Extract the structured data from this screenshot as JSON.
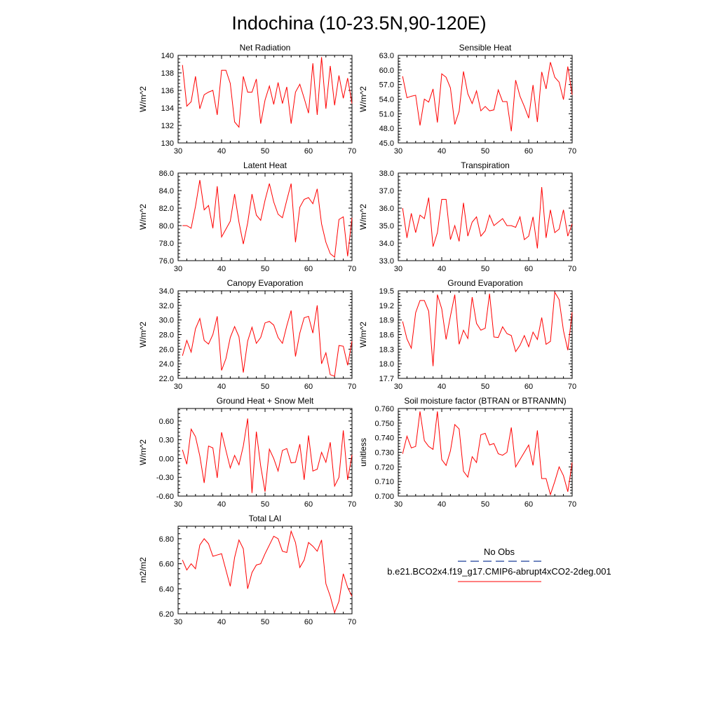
{
  "title": "Indochina (10-23.5N,90-120E)",
  "colors": {
    "series": "#ff0000",
    "obs": "#1a3f99",
    "axis": "#000000"
  },
  "legend": {
    "obs_label": "No Obs",
    "model_label": "b.e21.BCO2x4.f19_g17.CMIP6-abrupt4xCO2-2deg.001"
  },
  "chart_data": [
    {
      "type": "line",
      "title": "Net Radiation",
      "ylabel": "W/m^2",
      "xlim": [
        30,
        70
      ],
      "ylim": [
        130,
        140
      ],
      "xticks": [
        30,
        40,
        50,
        60,
        70
      ],
      "yticks": [
        130,
        132,
        134,
        136,
        138,
        140
      ],
      "ytick_labels": [
        "130",
        "132",
        "134",
        "136",
        "138",
        "140"
      ],
      "x": [
        31,
        32,
        33,
        34,
        35,
        36,
        37,
        38,
        39,
        40,
        41,
        42,
        43,
        44,
        45,
        46,
        47,
        48,
        49,
        50,
        51,
        52,
        53,
        54,
        55,
        56,
        57,
        58,
        59,
        60,
        61,
        62,
        63,
        64,
        65,
        66,
        67,
        68,
        69,
        70
      ],
      "series": [
        {
          "name": "b.e21.BCO2x4.f19_g17.CMIP6-abrupt4xCO2-2deg.001",
          "values": [
            138.9,
            134.2,
            134.7,
            137.6,
            133.9,
            135.5,
            135.8,
            136.0,
            133.2,
            138.3,
            138.3,
            136.8,
            132.4,
            131.8,
            137.6,
            135.8,
            135.8,
            137.3,
            132.2,
            134.9,
            136.5,
            134.4,
            136.9,
            134.5,
            136.4,
            132.2,
            135.8,
            136.7,
            135.1,
            133.4,
            139.1,
            133.2,
            139.8,
            133.9,
            138.8,
            134.3,
            137.7,
            135.1,
            137.4,
            134.5
          ]
        }
      ]
    },
    {
      "type": "line",
      "title": "Sensible Heat",
      "ylabel": "W/m^2",
      "xlim": [
        30,
        70
      ],
      "ylim": [
        45,
        63
      ],
      "xticks": [
        30,
        40,
        50,
        60,
        70
      ],
      "yticks": [
        45,
        48,
        51,
        54,
        57,
        60,
        63
      ],
      "ytick_labels": [
        "45.0",
        "48.0",
        "51.0",
        "54.0",
        "57.0",
        "60.0",
        "63.0"
      ],
      "x": [
        31,
        32,
        33,
        34,
        35,
        36,
        37,
        38,
        39,
        40,
        41,
        42,
        43,
        44,
        45,
        46,
        47,
        48,
        49,
        50,
        51,
        52,
        53,
        54,
        55,
        56,
        57,
        58,
        59,
        60,
        61,
        62,
        63,
        64,
        65,
        66,
        67,
        68,
        69,
        70
      ],
      "series": [
        {
          "name": "b.e21.BCO2x4.f19_g17.CMIP6-abrupt4xCO2-2deg.001",
          "values": [
            58.7,
            54.3,
            54.6,
            54.8,
            48.6,
            54.0,
            53.4,
            56.1,
            49.2,
            59.2,
            58.5,
            56.3,
            48.8,
            51.5,
            59.7,
            55.1,
            53.1,
            55.7,
            51.6,
            52.5,
            51.6,
            51.8,
            55.9,
            53.5,
            53.5,
            47.4,
            57.9,
            54.6,
            52.5,
            50.1,
            56.9,
            49.3,
            59.6,
            56.1,
            61.6,
            58.5,
            57.5,
            53.9,
            60.7,
            54.9
          ]
        }
      ]
    },
    {
      "type": "line",
      "title": "Latent Heat",
      "ylabel": "W/m^2",
      "xlim": [
        30,
        70
      ],
      "ylim": [
        76,
        86
      ],
      "xticks": [
        30,
        40,
        50,
        60,
        70
      ],
      "yticks": [
        76,
        78,
        80,
        82,
        84,
        86
      ],
      "ytick_labels": [
        "76.0",
        "78.0",
        "80.0",
        "82.0",
        "84.0",
        "86.0"
      ],
      "x": [
        31,
        32,
        33,
        34,
        35,
        36,
        37,
        38,
        39,
        40,
        41,
        42,
        43,
        44,
        45,
        46,
        47,
        48,
        49,
        50,
        51,
        52,
        53,
        54,
        55,
        56,
        57,
        58,
        59,
        60,
        61,
        62,
        63,
        64,
        65,
        66,
        67,
        68,
        69,
        70
      ],
      "series": [
        {
          "name": "b.e21.BCO2x4.f19_g17.CMIP6-abrupt4xCO2-2deg.001",
          "values": [
            80.0,
            80.0,
            79.7,
            82.2,
            85.2,
            81.8,
            82.3,
            79.7,
            84.5,
            78.7,
            79.6,
            80.5,
            83.6,
            80.4,
            77.9,
            80.3,
            83.6,
            81.2,
            80.6,
            82.9,
            84.8,
            82.7,
            81.3,
            80.9,
            82.9,
            84.8,
            78.1,
            82.1,
            83.0,
            83.2,
            82.5,
            84.2,
            80.2,
            78.1,
            76.8,
            76.4,
            80.7,
            81.0,
            76.5,
            80.9
          ]
        }
      ]
    },
    {
      "type": "line",
      "title": "Transpiration",
      "ylabel": "W/m^2",
      "xlim": [
        30,
        70
      ],
      "ylim": [
        33,
        38
      ],
      "xticks": [
        30,
        40,
        50,
        60,
        70
      ],
      "yticks": [
        33,
        34,
        35,
        36,
        37,
        38
      ],
      "ytick_labels": [
        "33.0",
        "34.0",
        "35.0",
        "36.0",
        "37.0",
        "38.0"
      ],
      "x": [
        31,
        32,
        33,
        34,
        35,
        36,
        37,
        38,
        39,
        40,
        41,
        42,
        43,
        44,
        45,
        46,
        47,
        48,
        49,
        50,
        51,
        52,
        53,
        54,
        55,
        56,
        57,
        58,
        59,
        60,
        61,
        62,
        63,
        64,
        65,
        66,
        67,
        68,
        69,
        70
      ],
      "series": [
        {
          "name": "b.e21.BCO2x4.f19_g17.CMIP6-abrupt4xCO2-2deg.001",
          "values": [
            36.0,
            34.3,
            35.7,
            34.6,
            35.6,
            35.4,
            36.6,
            33.8,
            34.6,
            36.5,
            36.5,
            34.2,
            35.0,
            34.1,
            36.3,
            34.4,
            35.2,
            35.5,
            34.4,
            34.7,
            35.6,
            35.0,
            35.2,
            35.4,
            35.0,
            35.0,
            34.9,
            35.5,
            34.2,
            34.4,
            35.5,
            33.7,
            37.2,
            34.3,
            35.9,
            34.6,
            34.8,
            35.9,
            34.4,
            35.1
          ]
        }
      ]
    },
    {
      "type": "line",
      "title": "Canopy Evaporation",
      "ylabel": "W/m^2",
      "xlim": [
        30,
        70
      ],
      "ylim": [
        22,
        34
      ],
      "xticks": [
        30,
        40,
        50,
        60,
        70
      ],
      "yticks": [
        22,
        24,
        26,
        28,
        30,
        32,
        34
      ],
      "ytick_labels": [
        "22.0",
        "24.0",
        "26.0",
        "28.0",
        "30.0",
        "32.0",
        "34.0"
      ],
      "x": [
        31,
        32,
        33,
        34,
        35,
        36,
        37,
        38,
        39,
        40,
        41,
        42,
        43,
        44,
        45,
        46,
        47,
        48,
        49,
        50,
        51,
        52,
        53,
        54,
        55,
        56,
        57,
        58,
        59,
        60,
        61,
        62,
        63,
        64,
        65,
        66,
        67,
        68,
        69,
        70
      ],
      "series": [
        {
          "name": "b.e21.BCO2x4.f19_g17.CMIP6-abrupt4xCO2-2deg.001",
          "values": [
            25.1,
            27.2,
            25.6,
            28.8,
            30.2,
            27.2,
            26.7,
            28.0,
            30.5,
            23.1,
            24.7,
            27.6,
            29.1,
            27.7,
            22.8,
            27.1,
            29.0,
            26.8,
            27.6,
            29.6,
            29.8,
            29.3,
            27.6,
            26.8,
            29.2,
            31.3,
            25.0,
            28.2,
            30.3,
            30.5,
            28.2,
            32.0,
            24.0,
            25.5,
            22.5,
            22.3,
            26.5,
            26.4,
            23.8,
            27.1
          ]
        }
      ]
    },
    {
      "type": "line",
      "title": "Ground Evaporation",
      "ylabel": "W/m^2",
      "xlim": [
        30,
        70
      ],
      "ylim": [
        17.7,
        19.5
      ],
      "xticks": [
        30,
        40,
        50,
        60,
        70
      ],
      "yticks": [
        17.7,
        18.0,
        18.3,
        18.6,
        18.9,
        19.2,
        19.5
      ],
      "ytick_labels": [
        "17.7",
        "18.0",
        "18.3",
        "18.6",
        "18.9",
        "19.2",
        "19.5"
      ],
      "x": [
        31,
        32,
        33,
        34,
        35,
        36,
        37,
        38,
        39,
        40,
        41,
        42,
        43,
        44,
        45,
        46,
        47,
        48,
        49,
        50,
        51,
        52,
        53,
        54,
        55,
        56,
        57,
        58,
        59,
        60,
        61,
        62,
        63,
        64,
        65,
        66,
        67,
        68,
        69,
        70
      ],
      "series": [
        {
          "name": "b.e21.BCO2x4.f19_g17.CMIP6-abrupt4xCO2-2deg.001",
          "values": [
            18.87,
            18.51,
            18.32,
            19.05,
            19.3,
            19.3,
            19.08,
            17.95,
            19.42,
            19.13,
            18.5,
            18.98,
            19.42,
            18.4,
            18.69,
            18.52,
            19.37,
            18.83,
            18.69,
            18.73,
            19.44,
            18.55,
            18.54,
            18.76,
            18.62,
            18.58,
            18.25,
            18.38,
            18.58,
            18.35,
            18.65,
            18.5,
            18.95,
            18.4,
            18.46,
            19.47,
            19.32,
            18.68,
            18.28,
            19.06
          ]
        }
      ]
    },
    {
      "type": "line",
      "title": "Ground Heat + Snow Melt",
      "ylabel": "W/m^2",
      "xlim": [
        30,
        70
      ],
      "ylim": [
        -0.6,
        0.8
      ],
      "xticks": [
        30,
        40,
        50,
        60,
        70
      ],
      "yticks": [
        -0.6,
        -0.3,
        0.0,
        0.3,
        0.6
      ],
      "ytick_labels": [
        "-0.60",
        "-0.30",
        "0.00",
        "0.30",
        "0.60"
      ],
      "x": [
        31,
        32,
        33,
        34,
        35,
        36,
        37,
        38,
        39,
        40,
        41,
        42,
        43,
        44,
        45,
        46,
        47,
        48,
        49,
        50,
        51,
        52,
        53,
        54,
        55,
        56,
        57,
        58,
        59,
        60,
        61,
        62,
        63,
        64,
        65,
        66,
        67,
        68,
        69,
        70
      ],
      "series": [
        {
          "name": "b.e21.BCO2x4.f19_g17.CMIP6-abrupt4xCO2-2deg.001",
          "values": [
            0.14,
            -0.09,
            0.47,
            0.35,
            0.04,
            -0.39,
            0.2,
            0.17,
            -0.31,
            0.42,
            0.13,
            -0.15,
            0.05,
            -0.1,
            0.2,
            0.64,
            -0.55,
            0.43,
            -0.12,
            -0.53,
            0.15,
            0.0,
            -0.2,
            0.13,
            0.16,
            -0.07,
            -0.06,
            0.23,
            -0.34,
            0.37,
            -0.2,
            -0.17,
            0.1,
            -0.06,
            0.26,
            -0.44,
            -0.3,
            0.45,
            -0.34,
            0.06
          ]
        }
      ]
    },
    {
      "type": "line",
      "title": "Soil moisture factor (BTRAN or BTRANMN)",
      "ylabel": "unitless",
      "xlim": [
        30,
        70
      ],
      "ylim": [
        0.7,
        0.76
      ],
      "xticks": [
        30,
        40,
        50,
        60,
        70
      ],
      "yticks": [
        0.7,
        0.71,
        0.72,
        0.73,
        0.74,
        0.75,
        0.76
      ],
      "ytick_labels": [
        "0.700",
        "0.710",
        "0.720",
        "0.730",
        "0.740",
        "0.750",
        "0.760"
      ],
      "x": [
        31,
        32,
        33,
        34,
        35,
        36,
        37,
        38,
        39,
        40,
        41,
        42,
        43,
        44,
        45,
        46,
        47,
        48,
        49,
        50,
        51,
        52,
        53,
        54,
        55,
        56,
        57,
        58,
        59,
        60,
        61,
        62,
        63,
        64,
        65,
        66,
        67,
        68,
        69,
        70
      ],
      "series": [
        {
          "name": "b.e21.BCO2x4.f19_g17.CMIP6-abrupt4xCO2-2deg.001",
          "values": [
            0.729,
            0.741,
            0.733,
            0.734,
            0.758,
            0.738,
            0.734,
            0.732,
            0.758,
            0.725,
            0.721,
            0.731,
            0.749,
            0.746,
            0.717,
            0.713,
            0.727,
            0.723,
            0.742,
            0.743,
            0.735,
            0.736,
            0.729,
            0.728,
            0.73,
            0.747,
            0.72,
            0.725,
            0.73,
            0.735,
            0.721,
            0.745,
            0.712,
            0.712,
            0.701,
            0.71,
            0.72,
            0.714,
            0.703,
            0.723
          ]
        }
      ]
    },
    {
      "type": "line",
      "title": "Total LAI",
      "ylabel": "m2/m2",
      "xlim": [
        30,
        70
      ],
      "ylim": [
        6.2,
        6.9
      ],
      "xticks": [
        30,
        40,
        50,
        60,
        70
      ],
      "yticks": [
        6.2,
        6.4,
        6.6,
        6.8
      ],
      "ytick_labels": [
        "6.20",
        "6.40",
        "6.60",
        "6.80"
      ],
      "x": [
        31,
        32,
        33,
        34,
        35,
        36,
        37,
        38,
        39,
        40,
        41,
        42,
        43,
        44,
        45,
        46,
        47,
        48,
        49,
        50,
        51,
        52,
        53,
        54,
        55,
        56,
        57,
        58,
        59,
        60,
        61,
        62,
        63,
        64,
        65,
        66,
        67,
        68,
        69,
        70
      ],
      "series": [
        {
          "name": "b.e21.BCO2x4.f19_g17.CMIP6-abrupt4xCO2-2deg.001",
          "values": [
            6.63,
            6.55,
            6.6,
            6.56,
            6.75,
            6.8,
            6.76,
            6.66,
            6.67,
            6.68,
            6.55,
            6.42,
            6.65,
            6.79,
            6.72,
            6.4,
            6.53,
            6.59,
            6.6,
            6.68,
            6.75,
            6.82,
            6.8,
            6.7,
            6.69,
            6.86,
            6.77,
            6.57,
            6.63,
            6.77,
            6.74,
            6.7,
            6.79,
            6.44,
            6.34,
            6.21,
            6.3,
            6.52,
            6.41,
            6.34
          ]
        }
      ]
    }
  ]
}
